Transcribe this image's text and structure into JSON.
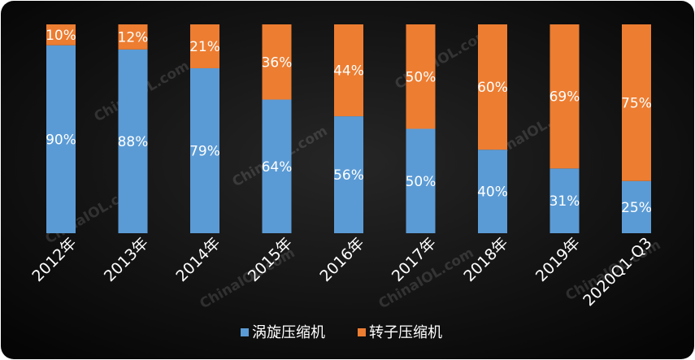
{
  "chart_data": {
    "type": "bar",
    "stacked": true,
    "percent_stacked": true,
    "categories": [
      "2012年",
      "2013年",
      "2014年",
      "2015年",
      "2016年",
      "2017年",
      "2018年",
      "2019年",
      "2020Q1-Q3"
    ],
    "series": [
      {
        "name": "涡旋压缩机",
        "values": [
          90,
          88,
          79,
          64,
          56,
          50,
          40,
          31,
          25
        ],
        "color": "#5b9bd5"
      },
      {
        "name": "转子压缩机",
        "values": [
          10,
          12,
          21,
          36,
          44,
          50,
          60,
          69,
          75
        ],
        "color": "#ed7d31"
      }
    ],
    "value_suffix": "%",
    "ylim": [
      0,
      100
    ],
    "grid": false,
    "legend_position": "bottom",
    "background": "#0d0d0d"
  },
  "watermark": "ChinaIOL.com"
}
